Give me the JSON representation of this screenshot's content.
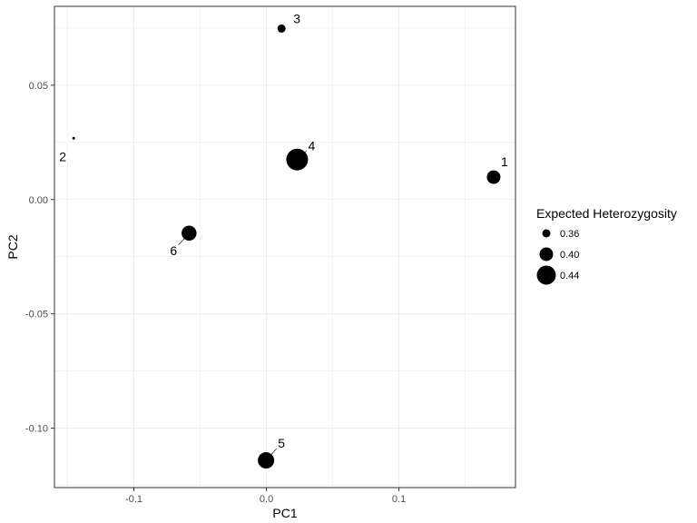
{
  "chart_data": {
    "type": "scatter",
    "xlabel": "PC1",
    "ylabel": "PC2",
    "xlim": [
      -0.16,
      0.188
    ],
    "ylim": [
      -0.126,
      0.0845
    ],
    "x_ticks": [
      {
        "value": -0.1,
        "label": "-0.1"
      },
      {
        "value": 0.0,
        "label": "0.0"
      },
      {
        "value": 0.1,
        "label": "0.1"
      }
    ],
    "y_ticks": [
      {
        "value": -0.1,
        "label": "-0.10"
      },
      {
        "value": -0.05,
        "label": "-0.05"
      },
      {
        "value": 0.0,
        "label": "0.00"
      },
      {
        "value": 0.05,
        "label": "0.05"
      }
    ],
    "grid": true,
    "size_legend": {
      "title": "Expected Heterozygosity",
      "position": "right",
      "entries": [
        {
          "value": 0.36,
          "label": "0.36"
        },
        {
          "value": 0.4,
          "label": "0.40"
        },
        {
          "value": 0.44,
          "label": "0.44"
        }
      ]
    },
    "points": [
      {
        "label": "1",
        "x": 0.1715,
        "y": 0.0098,
        "expected_heterozygosity": 0.4
      },
      {
        "label": "2",
        "x": -0.1455,
        "y": 0.0268,
        "expected_heterozygosity": 0.3
      },
      {
        "label": "3",
        "x": 0.0114,
        "y": 0.0748,
        "expected_heterozygosity": 0.36
      },
      {
        "label": "4",
        "x": 0.0232,
        "y": 0.0175,
        "expected_heterozygosity": 0.46
      },
      {
        "label": "5",
        "x": -0.0003,
        "y": -0.1141,
        "expected_heterozygosity": 0.42
      },
      {
        "label": "6",
        "x": -0.0584,
        "y": -0.0147,
        "expected_heterozygosity": 0.41
      }
    ],
    "point_color": "#000000",
    "panel_border_color": "#333333",
    "grid_color": "#ebebeb"
  }
}
